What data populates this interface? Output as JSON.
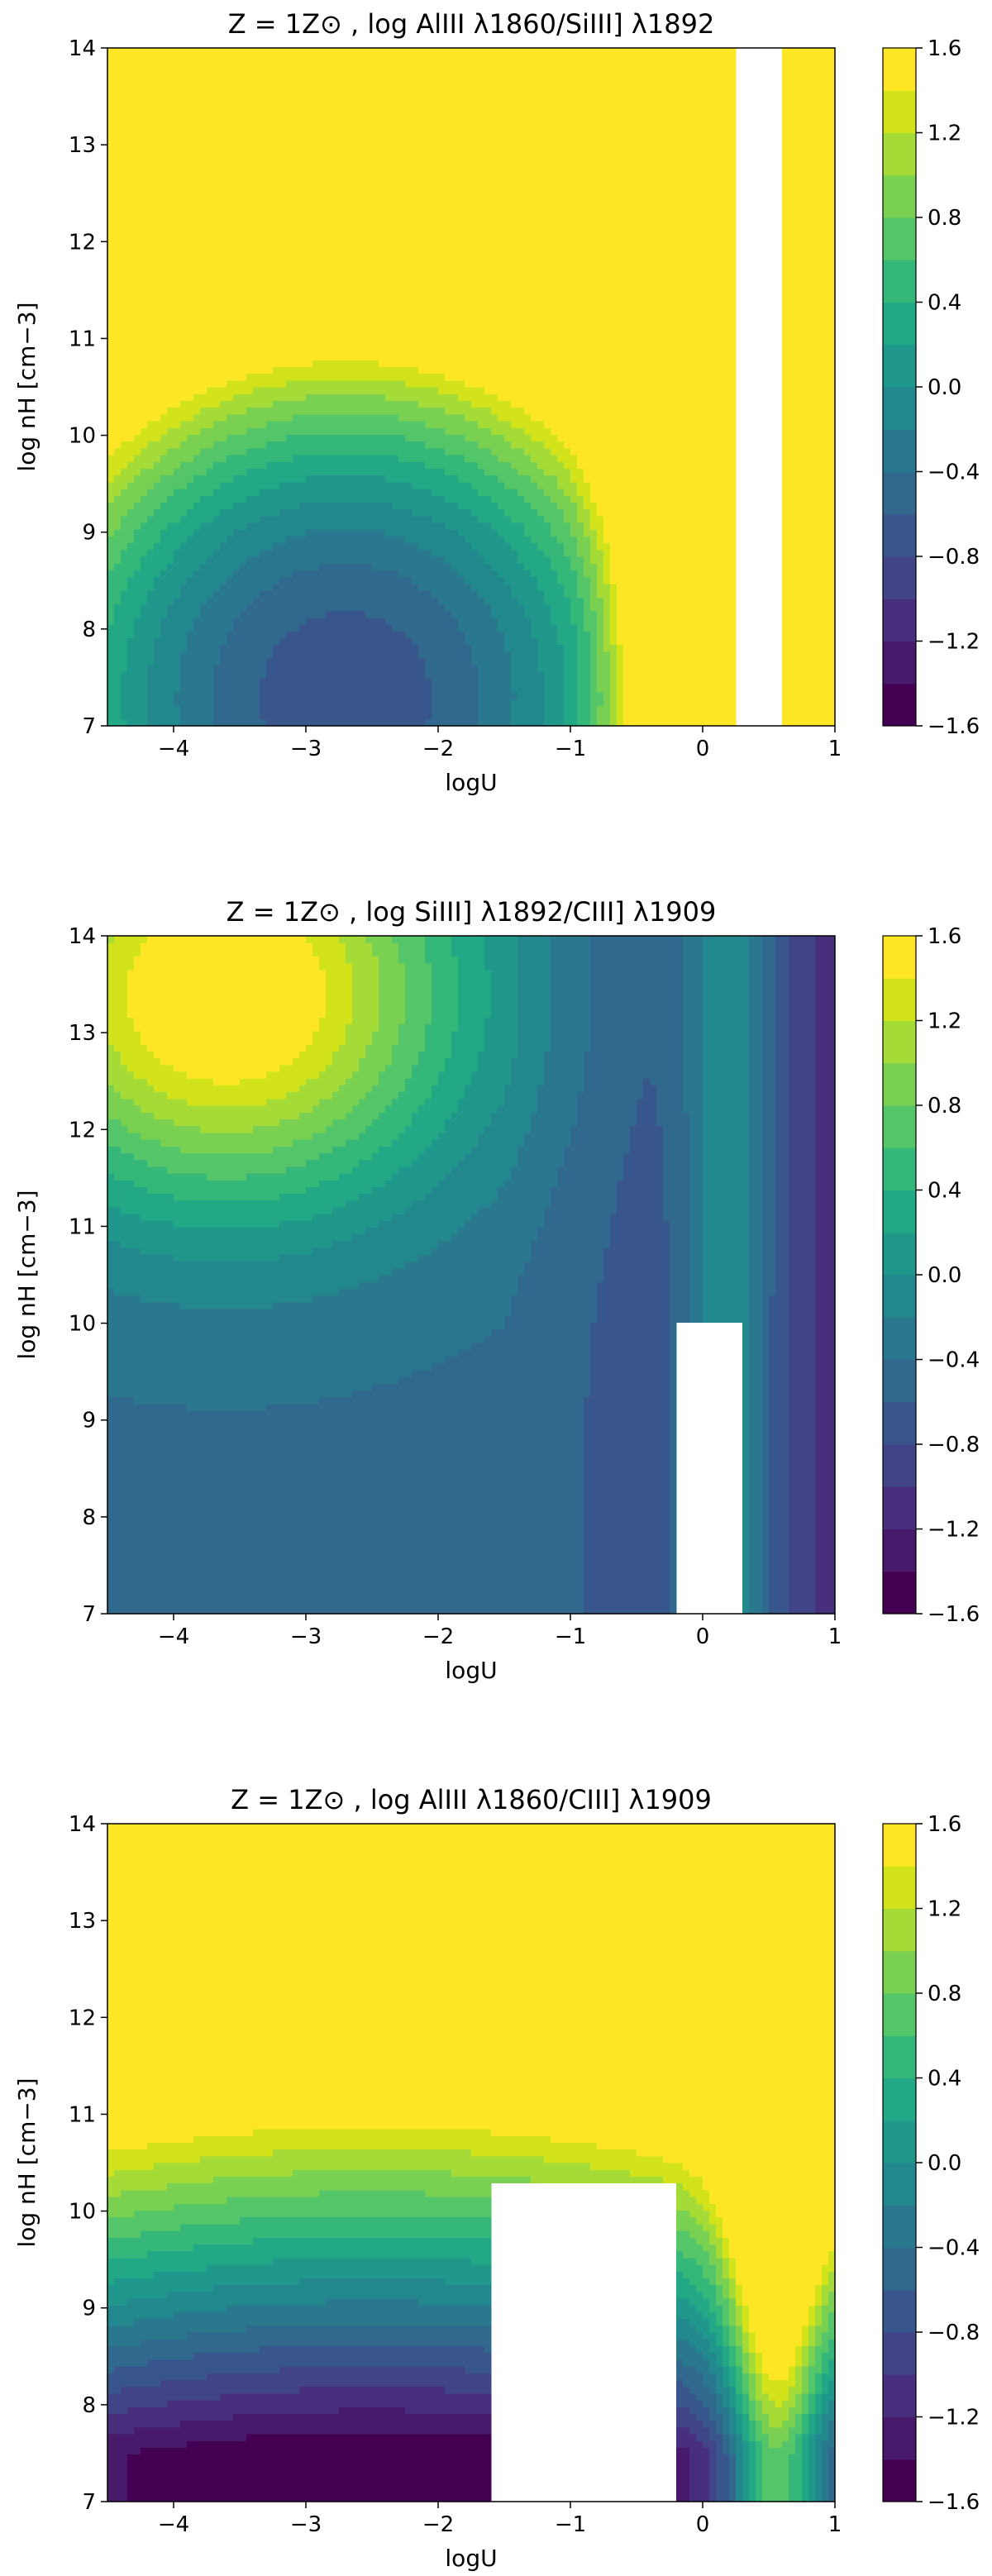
{
  "chart_data": [
    {
      "type": "contour",
      "title": "Z = 1Z⊙ , log AlIII λ1860/SiIII] λ1892",
      "xlabel": "logU",
      "ylabel": "log nH [cm−3]",
      "xlim": [
        -4.5,
        1
      ],
      "ylim": [
        7,
        14
      ],
      "xticks": [
        -4,
        -3,
        -2,
        -1,
        0,
        1
      ],
      "yticks": [
        7,
        8,
        9,
        10,
        11,
        12,
        13,
        14
      ],
      "colorbar": {
        "min": -1.6,
        "max": 1.6,
        "levels": 16,
        "ticks": [
          -1.6,
          -1.2,
          -0.8,
          -0.4,
          0.0,
          0.4,
          0.8,
          1.2,
          1.6
        ],
        "colormap": "viridis"
      },
      "field": {
        "model": "bowl",
        "base": -0.9,
        "min_value": -1.6,
        "center": [
          -2.7,
          8.0
        ],
        "scale": [
          2.2,
          3.0
        ],
        "tilt": 0.25,
        "rise_x": 0.6,
        "ridge_x": -0.1,
        "ridge_w": 0.45,
        "ridge_amp": 2.8,
        "blank_x": [
          0.25,
          0.6
        ],
        "blank_ymax": 14,
        "blank_edge": -0.12
      }
    },
    {
      "type": "contour",
      "title": "Z = 1Z⊙ , log SiIII] λ1892/CIII] λ1909",
      "xlabel": "logU",
      "ylabel": "log nH [cm−3]",
      "xlim": [
        -4.5,
        1
      ],
      "ylim": [
        7,
        14
      ],
      "xticks": [
        -4,
        -3,
        -2,
        -1,
        0,
        1
      ],
      "yticks": [
        7,
        8,
        9,
        10,
        11,
        12,
        13,
        14
      ],
      "colorbar": {
        "min": -1.6,
        "max": 1.6,
        "levels": 16,
        "ticks": [
          -1.6,
          -1.2,
          -0.8,
          -0.4,
          0.0,
          0.4,
          0.8,
          1.2,
          1.6
        ],
        "colormap": "viridis"
      },
      "field": {
        "model": "plateau",
        "base": -0.45,
        "min_value": -1.6,
        "peak": [
          -3.6,
          13.4
        ],
        "scale": [
          1.8,
          2.2
        ],
        "amp": 2.2,
        "ridge_x": 0.2,
        "ridge_w": 0.35,
        "ridge_amp": 1.4,
        "blank_x": [
          -0.2,
          0.3
        ],
        "blank_ymax": 10.0,
        "blank_edge": 0.0
      }
    },
    {
      "type": "contour",
      "title": "Z = 1Z⊙ , log AlIII λ1860/CIII] λ1909",
      "xlabel": "logU",
      "ylabel": "log nH [cm−3]",
      "xlim": [
        -4.5,
        1
      ],
      "ylim": [
        7,
        14
      ],
      "xticks": [
        -4,
        -3,
        -2,
        -1,
        0,
        1
      ],
      "yticks": [
        7,
        8,
        9,
        10,
        11,
        12,
        13,
        14
      ],
      "colorbar": {
        "min": -1.6,
        "max": 1.6,
        "levels": 16,
        "ticks": [
          -1.6,
          -1.2,
          -0.8,
          -0.4,
          0.0,
          0.4,
          0.8,
          1.2,
          1.6
        ],
        "colormap": "viridis"
      },
      "field": {
        "model": "slope",
        "base": -1.6,
        "min_value": -1.6,
        "center": [
          -2.5,
          7.5
        ],
        "scale": [
          2.6,
          4.2
        ],
        "amp": 3.4,
        "ridge_x": 0.55,
        "ridge_w": 0.35,
        "ridge_amp": 3.0,
        "blank_x": [
          -1.6,
          -0.2
        ],
        "blank_ymax": 10.3,
        "blank_edge": -0.45
      }
    }
  ]
}
